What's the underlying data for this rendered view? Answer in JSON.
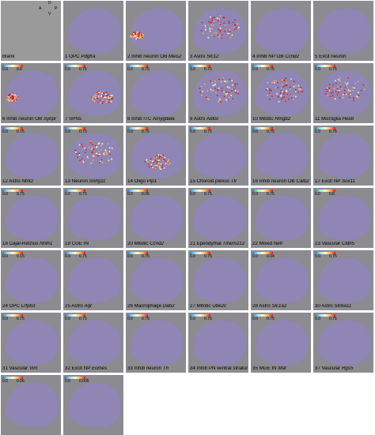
{
  "figure": {
    "axis_labels": {
      "a": "A",
      "p": "P",
      "d": "D",
      "v": "V"
    },
    "panels": [
      {
        "n": "",
        "t": "Blank",
        "g": "",
        "blank": true
      },
      {
        "n": "1",
        "t": "OPC",
        "g": "Pdgfra",
        "scale": "",
        "hot": "none"
      },
      {
        "n": "2",
        "t": "Inhib neuron OB",
        "g": "Meis2",
        "scale": "",
        "hot": "ob"
      },
      {
        "n": "3",
        "t": "Astro",
        "g": "Slc12",
        "scale": "",
        "hot": "diffuse"
      },
      {
        "n": "4",
        "t": "Inhib NP OB",
        "g": "Ccnd2",
        "scale": "",
        "hot": "none"
      },
      {
        "n": "5",
        "t": "Excit neuron",
        "g": "",
        "scale": "",
        "hot": "none"
      },
      {
        "n": "6",
        "t": "Inhib neuron OB",
        "g": "Synpr",
        "scale": "0.0 0.6",
        "hot": "ob"
      },
      {
        "n": "7",
        "t": "SPNs",
        "g": "",
        "scale": "0.0 0.75",
        "hot": "striatum"
      },
      {
        "n": "8",
        "t": "Inhib ITC",
        "g": "Amygdala",
        "scale": "0.0 0.75",
        "hot": "none"
      },
      {
        "n": "9",
        "t": "Astro",
        "g": "Aldoc",
        "scale": "0.0 0.75",
        "hot": "diffuse"
      },
      {
        "n": "10",
        "t": "Mitotic",
        "g": "Hmgb2",
        "scale": "0.0 0.75",
        "hot": "diffuse"
      },
      {
        "n": "11",
        "t": "Microglia",
        "g": "Hexb",
        "scale": "0.0 0.75",
        "hot": "diffuse"
      },
      {
        "n": "12",
        "t": "Astro",
        "g": "Ntrk2",
        "scale": "0.0 0.75",
        "hot": "none"
      },
      {
        "n": "13",
        "t": "Neuron",
        "g": "Snhg11",
        "scale": "0.0 0.75",
        "hot": "diffuse"
      },
      {
        "n": "14",
        "t": "Oligo",
        "g": "Plp1",
        "scale": "0.0 0.75",
        "hot": "tract"
      },
      {
        "n": "15",
        "t": "Choroid plexus",
        "g": "Ttr",
        "scale": "0.0 0.75",
        "hot": "none"
      },
      {
        "n": "16",
        "t": "Inhib neuron OB",
        "g": "Calb2",
        "scale": "0.0 0.75",
        "hot": "none"
      },
      {
        "n": "17",
        "t": "Excit NP",
        "g": "Sox11",
        "scale": "0.0 0.75",
        "hot": "none"
      },
      {
        "n": "18",
        "t": "Cajal-Retzius",
        "g": "Nhlh1",
        "scale": "0.0 0.75",
        "hot": "none"
      },
      {
        "n": "19",
        "t": "CGE IN",
        "g": "",
        "scale": "0.0 0.75",
        "hot": "none"
      },
      {
        "n": "20",
        "t": "Mitotic",
        "g": "Ccnd2",
        "scale": "0.0 0.06",
        "hot": "none"
      },
      {
        "n": "21",
        "t": "Ependymal",
        "g": "Tmem212",
        "scale": "0.0 0.75",
        "hot": "none"
      },
      {
        "n": "22",
        "t": "Mixed",
        "g": "Nefl",
        "scale": "0.0 0.75",
        "hot": "none"
      },
      {
        "n": "23",
        "t": "Vascular",
        "g": "Cldn5",
        "scale": "0.0 0.8",
        "hot": "none"
      },
      {
        "n": "24",
        "t": "OPC",
        "g": "Lrfpb3",
        "scale": "0.0 0.15",
        "hot": "none"
      },
      {
        "n": "25",
        "t": "Astro",
        "g": "Agt",
        "scale": "0.0 0.75",
        "hot": "none"
      },
      {
        "n": "26",
        "t": "Macrophage",
        "g": "Dab2",
        "scale": "0.0 0.75",
        "hot": "none"
      },
      {
        "n": "27",
        "t": "Mitotic",
        "g": "Ube2c",
        "scale": "0.0 0.75",
        "hot": "none"
      },
      {
        "n": "28",
        "t": "Astro",
        "g": "Slc1a2",
        "scale": "0.0 0.04",
        "hot": "none"
      },
      {
        "n": "30",
        "t": "Astro",
        "g": "Slc6a11",
        "scale": "0.0 0.75",
        "hot": "none"
      },
      {
        "n": "31",
        "t": "Vascular",
        "g": "Vim",
        "scale": "0.0 0.75",
        "hot": "none"
      },
      {
        "n": "32",
        "t": "Excit NP",
        "g": "Eomes",
        "scale": "0.0 0.75",
        "hot": "none"
      },
      {
        "n": "33",
        "t": "Inhib neuron",
        "g": "Th",
        "scale": "0.0 0.75",
        "hot": "none"
      },
      {
        "n": "34",
        "t": "Inhib PN ventral striatum/EAC",
        "g": "",
        "scale": "0.0 0.75",
        "hot": "none"
      },
      {
        "n": "35",
        "t": "MGE IN",
        "g": "Maf",
        "scale": "0.0 0.75",
        "hot": "none"
      },
      {
        "n": "37",
        "t": "Vascular",
        "g": "Rgs5",
        "scale": "0.0 0.75",
        "hot": "none"
      },
      {
        "n": "",
        "t": "",
        "g": "",
        "scale": "0.0 0.06",
        "hot": "none"
      },
      {
        "n": "",
        "t": "",
        "g": "",
        "scale": "0.0 0.005",
        "hot": "none"
      }
    ]
  },
  "colors": {
    "tissue": "#8f86b6",
    "background": "#8b8b90",
    "hot1": "#d7191c",
    "hot2": "#fdae61",
    "hot3": "#ffffbf"
  }
}
